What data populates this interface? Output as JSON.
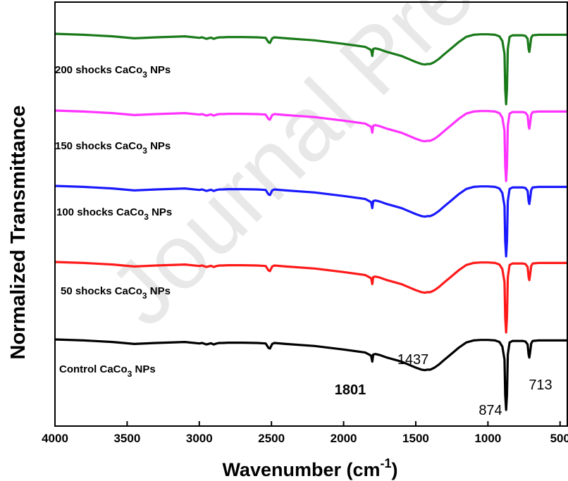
{
  "chart_data": {
    "type": "line",
    "title": "",
    "xlabel": "Wavenumber (cm",
    "xlabel_sup": "-1",
    "xlabel_close": ")",
    "ylabel": "Normalized Transmittance",
    "xlim": [
      4000,
      450
    ],
    "x_reversed": true,
    "xticks": [
      4000,
      3500,
      3000,
      2500,
      2000,
      1500,
      1000,
      500
    ],
    "xtick_labels": [
      "4000",
      "3500",
      "3000",
      "2500",
      "2000",
      "1500",
      "1000",
      "500"
    ],
    "yticks_shown": false,
    "grid": false,
    "watermark": "Journal Pre-proof",
    "series": [
      {
        "name_main": "200 shocks CaCo",
        "name_sub": "3",
        "name_tail": " NPs",
        "color": "#1a7a1a",
        "offset": 4
      },
      {
        "name_main": "150 shocks CaCo",
        "name_sub": "3",
        "name_tail": " NPs",
        "color": "#ff33ff",
        "offset": 3
      },
      {
        "name_main": "100 shocks CaCo",
        "name_sub": "3",
        "name_tail": " NPs",
        "color": "#1a1aff",
        "offset": 2
      },
      {
        "name_main": "50 shocks CaCo",
        "name_sub": "3",
        "name_tail": " NPs",
        "color": "#ff1a1a",
        "offset": 1
      },
      {
        "name_main": "Control CaCo",
        "name_sub": "3",
        "name_tail": " NPs",
        "color": "#000000",
        "offset": 0
      }
    ],
    "spectrum_shape": {
      "x": [
        4000,
        3800,
        3600,
        3450,
        3300,
        3100,
        3000,
        2980,
        2950,
        2920,
        2900,
        2880,
        2860,
        2840,
        2800,
        2700,
        2600,
        2540,
        2520,
        2510,
        2495,
        2480,
        2400,
        2200,
        2000,
        1850,
        1810,
        1801,
        1795,
        1780,
        1750,
        1700,
        1650,
        1600,
        1550,
        1500,
        1460,
        1437,
        1420,
        1400,
        1370,
        1340,
        1300,
        1250,
        1200,
        1150,
        1100,
        1050,
        1000,
        950,
        920,
        900,
        885,
        880,
        874,
        868,
        862,
        850,
        830,
        800,
        760,
        740,
        725,
        718,
        713,
        708,
        700,
        690,
        650,
        600,
        550,
        500,
        450
      ],
      "y": [
        1.0,
        0.99,
        0.975,
        0.955,
        0.965,
        0.975,
        0.96,
        0.965,
        0.95,
        0.962,
        0.95,
        0.96,
        0.965,
        0.965,
        0.968,
        0.968,
        0.965,
        0.96,
        0.915,
        0.91,
        0.955,
        0.965,
        0.955,
        0.935,
        0.9,
        0.87,
        0.84,
        0.78,
        0.85,
        0.855,
        0.845,
        0.82,
        0.8,
        0.78,
        0.75,
        0.72,
        0.7,
        0.695,
        0.7,
        0.7,
        0.72,
        0.75,
        0.8,
        0.86,
        0.92,
        0.97,
        0.99,
        0.995,
        0.995,
        0.99,
        0.975,
        0.93,
        0.8,
        0.45,
        0.3,
        0.45,
        0.85,
        0.97,
        0.985,
        0.985,
        0.985,
        0.98,
        0.95,
        0.85,
        0.82,
        0.87,
        0.96,
        0.985,
        0.99,
        0.99,
        0.99,
        0.99,
        0.99
      ]
    },
    "peak_labels": [
      {
        "text": "1801",
        "bold": true
      },
      {
        "text": "1437",
        "bold": false
      },
      {
        "text": "874",
        "bold": false
      },
      {
        "text": "713",
        "bold": false
      }
    ]
  }
}
